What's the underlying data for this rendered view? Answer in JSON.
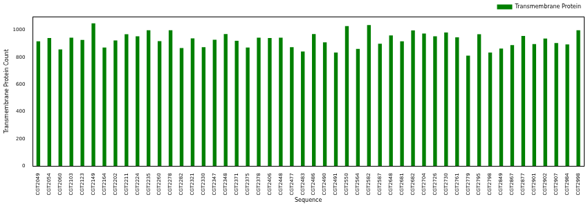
{
  "chart_data": {
    "type": "bar",
    "x_label": "Sequence",
    "y_label": "Transmembrane Protein Count",
    "categories": [
      "CGT2049",
      "CGT2054",
      "CGT2060",
      "CGT2103",
      "CGT2123",
      "CGT2149",
      "CGT2164",
      "CGT2202",
      "CGT2211",
      "CGT2224",
      "CGT2235",
      "CGT2260",
      "CGT2278",
      "CGT2282",
      "CGT2321",
      "CGT2330",
      "CGT2347",
      "CGT2348",
      "CGT2371",
      "CGT2375",
      "CGT2378",
      "CGT2406",
      "CGT2448",
      "CGT2477",
      "CGT2483",
      "CGT2486",
      "CGT2490",
      "CGT2491",
      "CGT2550",
      "CGT2564",
      "CGT2582",
      "CGT2587",
      "CGT2648",
      "CGT2681",
      "CGT2682",
      "CGT2704",
      "CGT2726",
      "CGT2730",
      "CGT2761",
      "CGT2779",
      "CGT2795",
      "CGT2798",
      "CGT2849",
      "CGT2867",
      "CGT2877",
      "CGT2901",
      "CGT2902",
      "CGT2907",
      "CGT2984",
      "CGT2998"
    ],
    "series": [
      {
        "name": "Transmembrane Protein",
        "color": "#008000",
        "values": [
          918,
          942,
          858,
          945,
          928,
          1050,
          872,
          925,
          970,
          955,
          1000,
          920,
          1000,
          868,
          940,
          875,
          930,
          972,
          922,
          872,
          945,
          942,
          945,
          875,
          843,
          972,
          910,
          835,
          1030,
          862,
          1038,
          900,
          962,
          918,
          998,
          975,
          955,
          983,
          948,
          812,
          970,
          835,
          865,
          890,
          958,
          898,
          938,
          905,
          895,
          1000
        ]
      }
    ],
    "ylim": [
      0,
      1100
    ],
    "yticks": [
      0,
      200,
      400,
      600,
      800,
      1000
    ],
    "grid": false,
    "legend": "upper right"
  }
}
